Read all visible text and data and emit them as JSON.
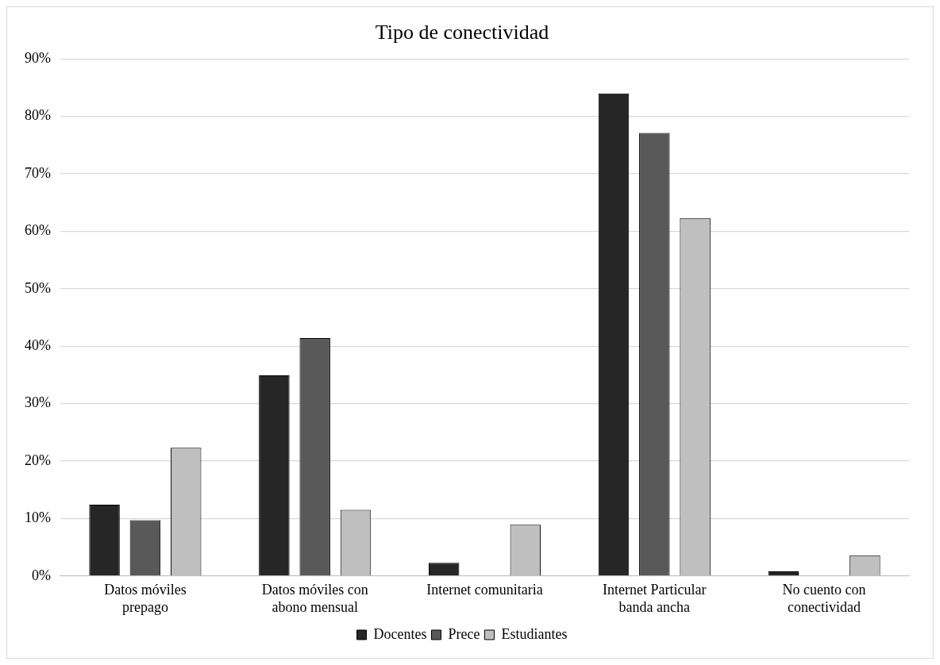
{
  "chart_data": {
    "type": "bar",
    "title": "Tipo de conectividad",
    "categories": [
      "Datos móviles\nprepago",
      "Datos móviles con\nabono mensual",
      "Internet comunitaria",
      "Internet Particular\nbanda ancha",
      "No cuento con\nconectividad"
    ],
    "series": [
      {
        "name": "Docentes",
        "color": "#262626",
        "values": [
          12.4,
          34.9,
          2.3,
          84.0,
          0.8
        ]
      },
      {
        "name": "Prece",
        "color": "#595959",
        "values": [
          9.7,
          41.4,
          0,
          77.1,
          0
        ]
      },
      {
        "name": "Estudiantes",
        "color": "#bfbfbf",
        "values": [
          22.3,
          11.5,
          8.9,
          62.3,
          3.6
        ]
      }
    ],
    "ylim": [
      0,
      90
    ],
    "yticks": [
      {
        "value": 0,
        "label": "0%"
      },
      {
        "value": 10,
        "label": "10%"
      },
      {
        "value": 20,
        "label": "20%"
      },
      {
        "value": 30,
        "label": "30%"
      },
      {
        "value": 40,
        "label": "40%"
      },
      {
        "value": 50,
        "label": "50%"
      },
      {
        "value": 60,
        "label": "60%"
      },
      {
        "value": 70,
        "label": "70%"
      },
      {
        "value": 80,
        "label": "80%"
      },
      {
        "value": 90,
        "label": "90%"
      }
    ],
    "grid": "y",
    "legend": "bottom"
  }
}
